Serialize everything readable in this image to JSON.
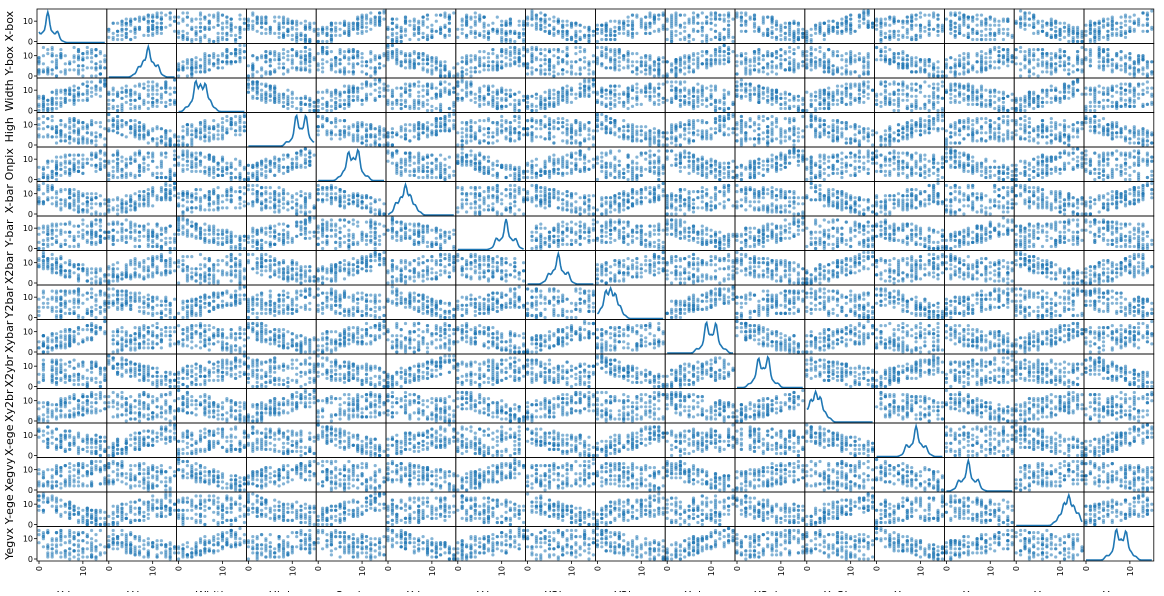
{
  "chart_data": {
    "type": "scatter-matrix",
    "variables": [
      "X-box",
      "Y-box",
      "Width",
      "High",
      "Onpix",
      "X-bar",
      "Y-bar",
      "X2bar",
      "Y2bar",
      "Xybar",
      "X2ybr",
      "Xy2br",
      "X-ege",
      "Xegvy",
      "Y-ege",
      "Yegvx"
    ],
    "range": [
      0,
      15
    ],
    "diagonal": "kde",
    "y_ticks": [
      "0",
      "10"
    ],
    "x_ticks": [
      "0",
      "10"
    ],
    "color": "#1f77b4",
    "grid": false
  }
}
